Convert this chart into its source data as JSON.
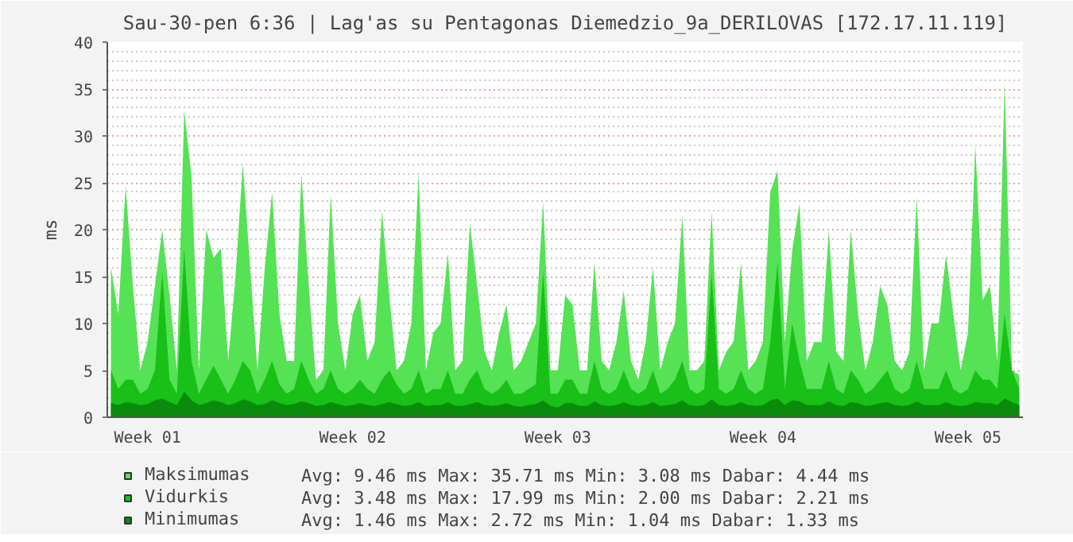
{
  "chart_data": {
    "type": "area",
    "title": "Sau-30-pen 6:36 | Lag'as su Pentagonas Diemedzio_9a_DERILOVAS [172.17.11.119]",
    "ylabel": "ms",
    "categories": [
      null,
      null,
      null,
      null,
      null,
      "Week 01",
      null,
      null,
      null,
      null,
      null,
      null,
      null,
      null,
      null,
      null,
      null,
      null,
      null,
      null,
      null,
      null,
      null,
      null,
      null,
      null,
      null,
      null,
      null,
      null,
      null,
      null,
      null,
      "Week 02",
      null,
      null,
      null,
      null,
      null,
      null,
      null,
      null,
      null,
      null,
      null,
      null,
      null,
      null,
      null,
      null,
      null,
      null,
      null,
      null,
      null,
      null,
      null,
      null,
      null,
      null,
      null,
      "Week 03",
      null,
      null,
      null,
      null,
      null,
      null,
      null,
      null,
      null,
      null,
      null,
      null,
      null,
      null,
      null,
      null,
      null,
      null,
      null,
      null,
      null,
      null,
      null,
      null,
      null,
      null,
      null,
      "Week 04",
      null,
      null,
      null,
      null,
      null,
      null,
      null,
      null,
      null,
      null,
      null,
      null,
      null,
      null,
      null,
      null,
      null,
      null,
      null,
      null,
      null,
      null,
      null,
      null,
      null,
      null,
      null,
      "Week 05",
      null,
      null,
      null,
      null,
      null,
      null,
      null
    ],
    "series": [
      {
        "name": "Maksimumas",
        "color": "#55e255",
        "values": [
          16,
          11,
          24.7,
          14,
          5,
          8,
          14,
          20,
          13,
          5,
          32.7,
          25.7,
          5,
          20,
          17,
          18,
          6,
          15,
          27,
          16,
          5,
          16,
          24,
          11,
          6,
          6,
          26,
          14,
          4,
          5,
          23.8,
          10,
          5,
          11,
          13,
          6,
          8,
          22,
          13,
          5,
          6,
          10,
          26,
          5,
          9,
          10,
          17.5,
          5,
          6,
          20.7,
          14,
          7,
          5,
          9,
          12,
          5,
          6,
          8,
          10,
          23,
          5,
          5,
          13,
          12,
          5,
          5,
          16.5,
          6,
          5,
          8,
          13.5,
          6,
          4,
          8,
          16,
          5,
          8,
          10,
          21.5,
          5,
          5,
          6,
          22,
          5,
          7,
          8,
          16.5,
          5,
          6,
          8,
          24,
          26.3,
          8,
          17.8,
          22.8,
          6,
          8,
          8,
          20,
          7,
          6,
          20,
          11,
          5,
          8,
          14,
          12,
          6,
          5,
          7,
          23.5,
          5,
          10,
          10,
          17.3,
          11,
          5,
          9,
          29,
          12.5,
          14,
          6,
          35.71,
          5,
          4.5
        ]
      },
      {
        "name": "Vidurkis",
        "color": "#18c018",
        "values": [
          5,
          3,
          4,
          4,
          2.5,
          3,
          5,
          15.5,
          4,
          2.5,
          17.99,
          6,
          2.5,
          4,
          5.5,
          4,
          2.5,
          4,
          6,
          5,
          2.5,
          4,
          6,
          3.5,
          2.5,
          3,
          6,
          4,
          2.5,
          3,
          5,
          3,
          2.5,
          3,
          4,
          3,
          2.5,
          4,
          5,
          3.5,
          2.5,
          3,
          5,
          2.5,
          3,
          3,
          5,
          2.5,
          2.5,
          4,
          5,
          3,
          2.5,
          3,
          4,
          2.5,
          2.5,
          3,
          3.5,
          15.5,
          2.5,
          2.5,
          4,
          4,
          2.5,
          2.5,
          6,
          3,
          2.5,
          3,
          5,
          3,
          2.5,
          3,
          5,
          2.5,
          3,
          4,
          6,
          3,
          2.5,
          3,
          15.5,
          3,
          2.5,
          3,
          5,
          3,
          2.5,
          3,
          8,
          16.5,
          3,
          10,
          6,
          3,
          3,
          3,
          6,
          3,
          2.5,
          5,
          4,
          2.5,
          3,
          4,
          5,
          3,
          2.5,
          3,
          6,
          3,
          3,
          3,
          5,
          3,
          2.5,
          3,
          5,
          4,
          4,
          3,
          11,
          5,
          3
        ]
      },
      {
        "name": "Minimumas",
        "color": "#0b8b0b",
        "values": [
          1.5,
          1.3,
          1.6,
          1.5,
          1.3,
          1.4,
          1.8,
          2.0,
          1.6,
          1.3,
          2.72,
          1.8,
          1.3,
          1.5,
          1.8,
          1.6,
          1.3,
          1.5,
          1.9,
          1.7,
          1.3,
          1.4,
          1.8,
          1.5,
          1.3,
          1.4,
          1.7,
          1.5,
          1.2,
          1.3,
          1.6,
          1.4,
          1.2,
          1.3,
          1.5,
          1.3,
          1.2,
          1.4,
          1.6,
          1.4,
          1.2,
          1.3,
          1.6,
          1.2,
          1.3,
          1.3,
          1.6,
          1.2,
          1.2,
          1.4,
          1.6,
          1.3,
          1.2,
          1.3,
          1.5,
          1.2,
          1.1,
          1.3,
          1.4,
          1.8,
          1.2,
          1.04,
          1.5,
          1.5,
          1.2,
          1.2,
          1.7,
          1.3,
          1.2,
          1.3,
          1.6,
          1.3,
          1.2,
          1.3,
          1.6,
          1.2,
          1.3,
          1.4,
          1.8,
          1.3,
          1.2,
          1.3,
          1.9,
          1.3,
          1.2,
          1.3,
          1.6,
          1.3,
          1.2,
          1.3,
          1.8,
          2.0,
          1.3,
          1.8,
          1.7,
          1.3,
          1.3,
          1.3,
          1.7,
          1.3,
          1.2,
          1.6,
          1.5,
          1.2,
          1.3,
          1.5,
          1.6,
          1.3,
          1.2,
          1.3,
          1.7,
          1.3,
          1.3,
          1.3,
          1.6,
          1.3,
          1.2,
          1.3,
          1.6,
          1.5,
          1.5,
          1.3,
          2.0,
          1.6,
          1.3
        ]
      }
    ],
    "ylim": [
      0,
      40
    ],
    "yticks": [
      0,
      5,
      10,
      15,
      20,
      25,
      30,
      35,
      40
    ],
    "grid": "y",
    "legend": "bottom",
    "annotations": [
      "Avg:   9.46 ms   Max:  35.71 ms   Min:   3.08 ms   Dabar:   4.44 ms",
      "Avg:   3.48 ms   Max:  17.99 ms   Min:   2.00 ms   Dabar:   2.21 ms",
      "Avg:   1.46 ms      Max:   2.72 ms      Min:   1.04 ms      Dabar:   1.33 ms"
    ]
  }
}
